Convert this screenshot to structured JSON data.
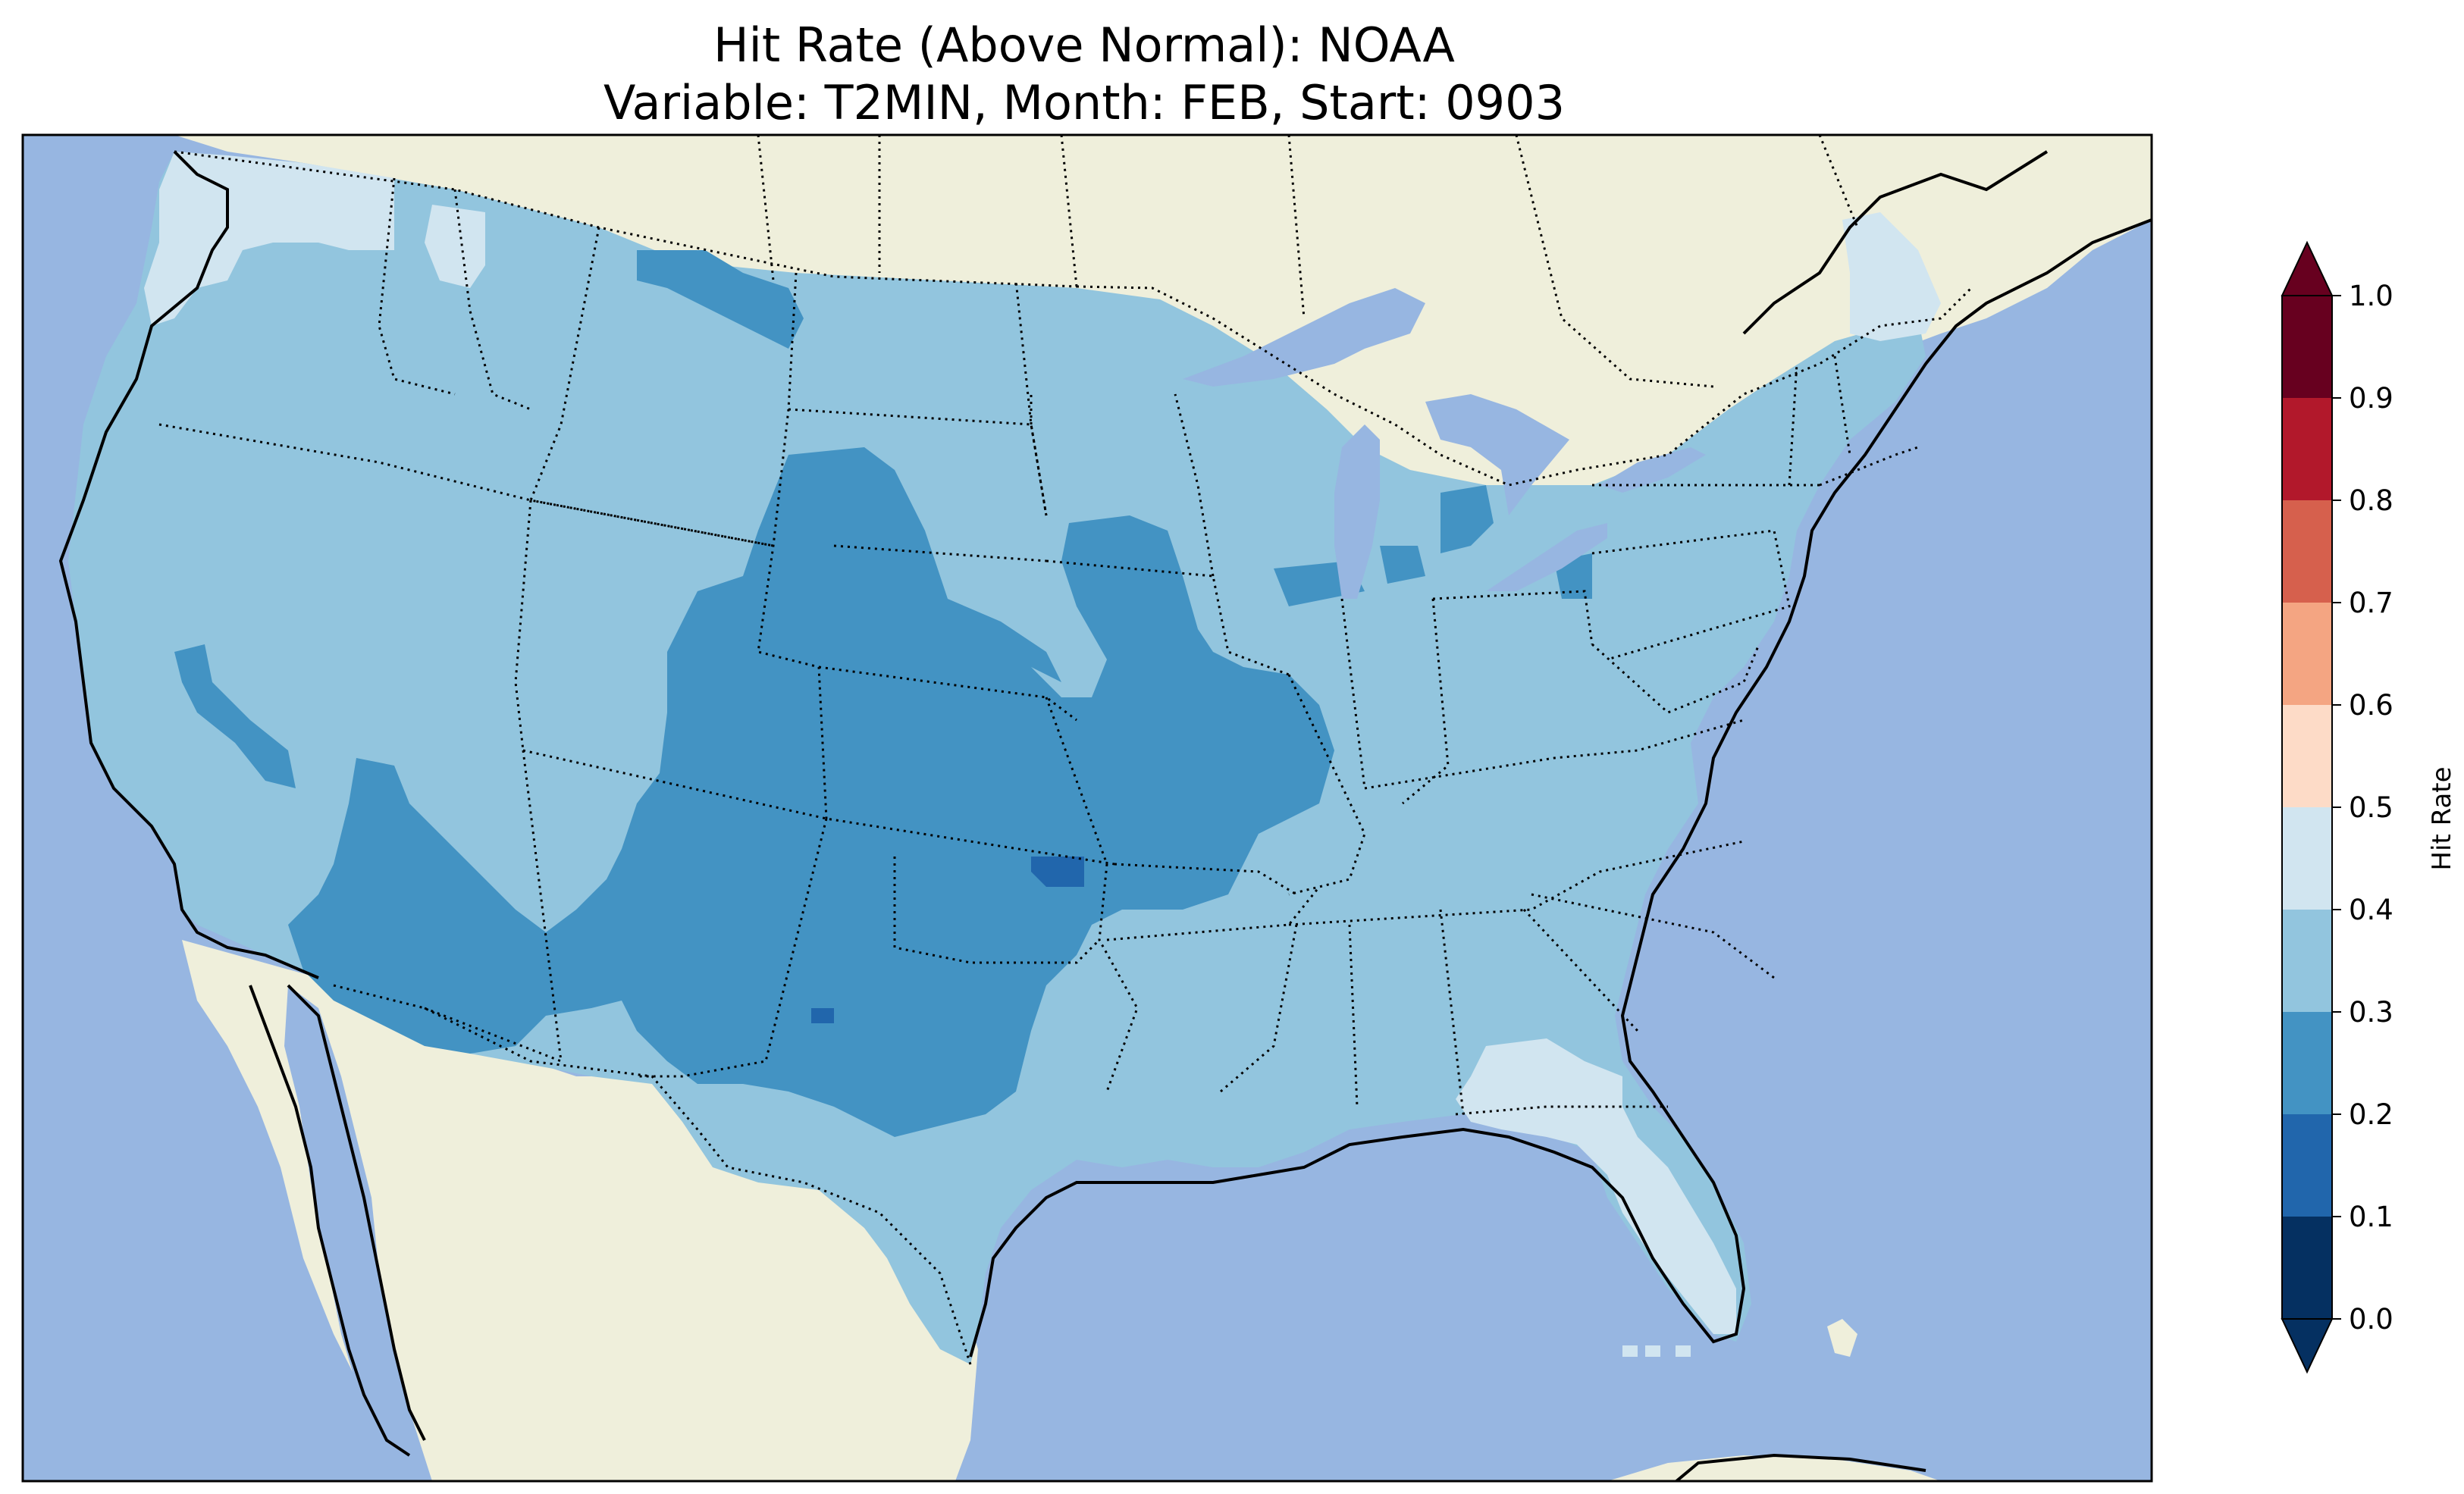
{
  "title": {
    "line1": "Hit Rate (Above Normal): NOAA",
    "line2": "Variable: T2MIN, Month: FEB, Start: 0903"
  },
  "colors": {
    "ocean": "#97b6e1",
    "land": "#efefdb",
    "lake": "#97b6e1"
  },
  "colorbar": {
    "label": "Hit Rate",
    "ticks": [
      "0.0",
      "0.1",
      "0.2",
      "0.3",
      "0.4",
      "0.5",
      "0.6",
      "0.7",
      "0.8",
      "0.9",
      "1.0"
    ],
    "bins": [
      {
        "from": 0.0,
        "to": 0.1,
        "color": "#053061"
      },
      {
        "from": 0.1,
        "to": 0.2,
        "color": "#2166ac"
      },
      {
        "from": 0.2,
        "to": 0.3,
        "color": "#4393c3"
      },
      {
        "from": 0.3,
        "to": 0.4,
        "color": "#92c5de"
      },
      {
        "from": 0.4,
        "to": 0.5,
        "color": "#d1e5f0"
      },
      {
        "from": 0.5,
        "to": 0.6,
        "color": "#fddbc7"
      },
      {
        "from": 0.6,
        "to": 0.7,
        "color": "#f4a582"
      },
      {
        "from": 0.7,
        "to": 0.8,
        "color": "#d6604d"
      },
      {
        "from": 0.8,
        "to": 0.9,
        "color": "#b2182b"
      },
      {
        "from": 0.9,
        "to": 1.0,
        "color": "#67001f"
      }
    ],
    "under_color": "#053061",
    "over_color": "#67001f"
  },
  "map_regions": {
    "base_hit_rate_range": "0.3-0.4",
    "lower_hit_rate_range": "0.2-0.3",
    "higher_hit_rate_range": "0.4-0.5",
    "lowest_hit_rate_range": "0.1-0.2"
  }
}
